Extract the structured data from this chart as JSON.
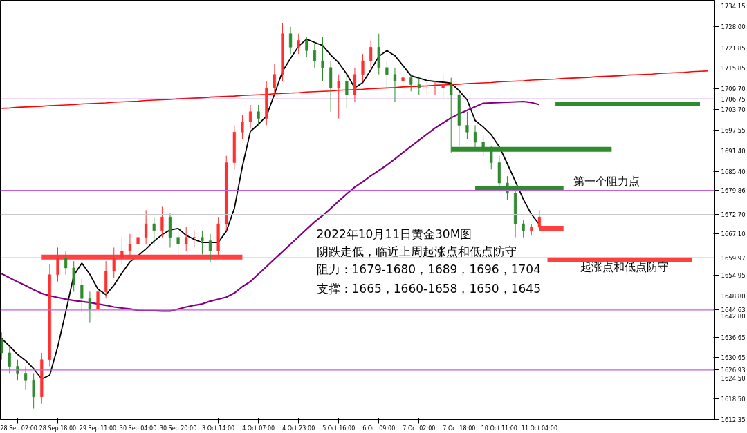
{
  "chart_data": {
    "type": "candlestick",
    "categories": [
      null,
      null,
      "28 Sep 02:00",
      null,
      null,
      null,
      null,
      "28 Sep 18:00",
      null,
      null,
      null,
      null,
      "29 Sep 11:00",
      null,
      null,
      null,
      null,
      "30 Sep 04:00",
      null,
      null,
      null,
      null,
      "30 Sep 20:00",
      null,
      null,
      null,
      null,
      "3 Oct 14:00",
      null,
      null,
      null,
      null,
      "4 Oct 07:00",
      null,
      null,
      null,
      null,
      "4 Oct 23:00",
      null,
      null,
      null,
      null,
      "5 Oct 16:00",
      null,
      null,
      null,
      null,
      "6 Oct 09:00",
      null,
      null,
      null,
      null,
      "7 Oct 02:00",
      null,
      null,
      null,
      null,
      "7 Oct 18:00",
      null,
      null,
      null,
      null,
      "10 Oct 11:00",
      null,
      null,
      null,
      null,
      "11 Oct 04:00",
      null,
      null,
      null,
      null,
      null,
      null,
      null,
      null,
      null,
      null,
      null,
      null,
      null,
      null,
      null,
      null,
      null,
      null,
      null,
      null,
      null
    ],
    "ohlc": [
      [
        1636,
        1638,
        1630,
        1632
      ],
      [
        1632,
        1634,
        1626,
        1628
      ],
      [
        1628,
        1630,
        1624,
        1626
      ],
      [
        1626,
        1628,
        1621,
        1624
      ],
      [
        1624,
        1626,
        1615.6,
        1619
      ],
      [
        1619,
        1632,
        1617,
        1630
      ],
      [
        1630,
        1658,
        1628,
        1655
      ],
      [
        1655,
        1663,
        1653,
        1660
      ],
      [
        1660,
        1662,
        1655,
        1657
      ],
      [
        1657,
        1659,
        1650,
        1652
      ],
      [
        1652,
        1654,
        1644,
        1648
      ],
      [
        1648,
        1650,
        1641,
        1645
      ],
      [
        1645,
        1652,
        1643,
        1650
      ],
      [
        1650,
        1659,
        1648,
        1656
      ],
      [
        1656,
        1663,
        1654,
        1660
      ],
      [
        1660,
        1666,
        1658,
        1662
      ],
      [
        1662,
        1667,
        1660,
        1664
      ],
      [
        1664,
        1669,
        1662,
        1666
      ],
      [
        1666,
        1674,
        1664,
        1670
      ],
      [
        1670,
        1672,
        1664,
        1668
      ],
      [
        1668,
        1675,
        1666,
        1672
      ],
      [
        1672,
        1673,
        1663,
        1666
      ],
      [
        1666,
        1668,
        1661,
        1664
      ],
      [
        1664,
        1669,
        1662,
        1666
      ],
      [
        1666,
        1668,
        1663,
        1666
      ],
      [
        1666,
        1668,
        1661,
        1665
      ],
      [
        1665,
        1667,
        1658.8,
        1662
      ],
      [
        1662,
        1672,
        1660,
        1670
      ],
      [
        1670,
        1690,
        1668,
        1688
      ],
      [
        1688,
        1699,
        1686,
        1697
      ],
      [
        1697,
        1702,
        1695,
        1700
      ],
      [
        1700,
        1705,
        1698,
        1703
      ],
      [
        1703,
        1705,
        1699,
        1701
      ],
      [
        1701,
        1712,
        1699,
        1710
      ],
      [
        1710,
        1717,
        1708,
        1714
      ],
      [
        1714,
        1729,
        1712,
        1726
      ],
      [
        1726,
        1728,
        1720,
        1722
      ],
      [
        1722,
        1726,
        1720,
        1724
      ],
      [
        1724,
        1725,
        1719,
        1721
      ],
      [
        1721,
        1723,
        1716,
        1718
      ],
      [
        1718,
        1725,
        1712,
        1716
      ],
      [
        1716,
        1718,
        1703,
        1710
      ],
      [
        1710,
        1714,
        1701,
        1712
      ],
      [
        1712,
        1714,
        1704,
        1708
      ],
      [
        1708,
        1716,
        1706,
        1714
      ],
      [
        1714,
        1720,
        1712,
        1718
      ],
      [
        1718,
        1724,
        1716,
        1722
      ],
      [
        1722,
        1726,
        1714,
        1716
      ],
      [
        1716,
        1718,
        1710,
        1714
      ],
      [
        1714,
        1716,
        1706,
        1712
      ],
      [
        1712,
        1715,
        1710,
        1713
      ],
      [
        1713,
        1714,
        1709,
        1711
      ],
      [
        1711,
        1713,
        1708,
        1710
      ],
      [
        1710,
        1712,
        1708,
        1710
      ],
      [
        1710,
        1712,
        1708,
        1710
      ],
      [
        1710,
        1714,
        1707,
        1711
      ],
      [
        1711,
        1713,
        1691,
        1708
      ],
      [
        1708,
        1709,
        1693,
        1699
      ],
      [
        1699,
        1703,
        1695,
        1697
      ],
      [
        1697,
        1699,
        1692,
        1694
      ],
      [
        1694,
        1696,
        1690,
        1692
      ],
      [
        1692,
        1693,
        1686,
        1688
      ],
      [
        1688,
        1690,
        1680,
        1682
      ],
      [
        1682,
        1684,
        1677,
        1679
      ],
      [
        1679,
        1680,
        1666,
        1670
      ],
      [
        1670,
        1671,
        1666,
        1668
      ],
      [
        1668,
        1670,
        1666.5,
        1669
      ],
      [
        1669,
        1674,
        1668,
        1672
      ],
      null,
      null,
      null,
      null,
      null,
      null,
      null,
      null,
      null,
      null,
      null,
      null,
      null,
      null,
      null,
      null,
      null,
      null,
      null,
      null,
      null
    ],
    "colors": [
      "#2e8b2e",
      "#2e8b2e",
      "#2e8b2e",
      "#2e8b2e",
      "#2e8b2e",
      "#ff3030",
      "#ff3030",
      "#ff3030",
      "#2e8b2e",
      "#2e8b2e",
      "#2e8b2e",
      "#2e8b2e",
      "#ff3030",
      "#ff3030",
      "#ff3030",
      "#ff3030",
      "#ff3030",
      "#ff3030",
      "#ff3030",
      "#2e8b2e",
      "#ff3030",
      "#2e8b2e",
      "#2e8b2e",
      "#ff3030",
      "#ff3030",
      "#2e8b2e",
      "#2e8b2e",
      "#ff3030",
      "#ff3030",
      "#ff3030",
      "#ff3030",
      "#ff3030",
      "#2e8b2e",
      "#ff3030",
      "#ff3030",
      "#ff3030",
      "#2e8b2e",
      "#ff3030",
      "#2e8b2e",
      "#2e8b2e",
      "#2e8b2e",
      "#2e8b2e",
      "#ff3030",
      "#2e8b2e",
      "#ff3030",
      "#ff3030",
      "#ff3030",
      "#2e8b2e",
      "#2e8b2e",
      "#2e8b2e",
      "#ff3030",
      "#2e8b2e",
      "#2e8b2e",
      "#ff3030",
      "#ff3030",
      "#ff3030",
      "#2e8b2e",
      "#2e8b2e",
      "#2e8b2e",
      "#2e8b2e",
      "#2e8b2e",
      "#2e8b2e",
      "#2e8b2e",
      "#2e8b2e",
      "#2e8b2e",
      "#2e8b2e",
      "#ff3030",
      "#ff3030",
      null,
      null,
      null,
      null,
      null,
      null,
      null,
      null,
      null,
      null,
      null,
      null,
      null,
      null,
      null,
      null,
      null,
      null,
      null,
      null,
      null
    ],
    "series": [
      {
        "type": "line",
        "color": "#000000",
        "values": [
          1636.2,
          1634,
          1631.5,
          1629.7,
          1627.3,
          1624.3,
          1625.4,
          1633.8,
          1644.1,
          1654.8,
          1658.4,
          1655.1,
          1650.8,
          1649.1,
          1651.9,
          1655.5,
          1658.8,
          1660.6,
          1662.6,
          1664.9,
          1666.8,
          1668.2,
          1668.6,
          1666.6,
          1665.4,
          1664.5,
          1664.5,
          1664.5,
          1667.8,
          1674.5,
          1686.9,
          1697.2,
          1699.3,
          1701.7,
          1708.2,
          1714.9,
          1718.7,
          1722.3,
          1724.4,
          1723.4,
          1722.5,
          1719.7,
          1717.4,
          1714.1,
          1710,
          1711.6,
          1715.3,
          1719.3,
          1721,
          1719.5,
          1716.6,
          1713.6,
          1712.9,
          1712.2,
          1711.9,
          1711.7,
          1711.4,
          1709.2,
          1706.5,
          1700.4,
          1698.5,
          1696.2,
          1692.7,
          1687.7,
          1682.5,
          1677.2,
          1672.8,
          1669.8,
          null,
          null,
          null,
          null,
          null,
          null,
          null,
          null,
          null,
          null,
          null,
          null,
          null,
          null,
          null,
          null,
          null,
          null,
          null,
          null,
          null
        ]
      },
      {
        "type": "line",
        "color": "#800080",
        "values": [
          1655.3,
          1654.1,
          1652.9,
          1651.8,
          1650.6,
          1649.5,
          1648.8,
          1648.3,
          1647.8,
          1647.4,
          1647.1,
          1646.8,
          1646.4,
          1646,
          1645.5,
          1645.2,
          1644.9,
          1644.5,
          1644.4,
          1644.4,
          1644.3,
          1644.3,
          1644.9,
          1645.5,
          1646,
          1646.4,
          1647.2,
          1647.8,
          1648.4,
          1649.6,
          1651.5,
          1653,
          1655.2,
          1657.4,
          1659.6,
          1661.8,
          1664,
          1666.2,
          1668.4,
          1670.6,
          1672.4,
          1674.5,
          1676.7,
          1678.8,
          1680.8,
          1682.4,
          1684.1,
          1685.7,
          1687.3,
          1689.1,
          1691,
          1692.8,
          1694.6,
          1696.4,
          1698.2,
          1699.7,
          1701.2,
          1702.4,
          1703.4,
          1704.5,
          1705.5,
          1705.6,
          1705.7,
          1705.8,
          1705.9,
          1706,
          1705.7,
          1705.1,
          null,
          null,
          null,
          null,
          null,
          null,
          null,
          null,
          null,
          null,
          null,
          null,
          null,
          null,
          null,
          null,
          null,
          null,
          null,
          null,
          null
        ]
      },
      {
        "type": "line",
        "color": "#ff0000",
        "values": [
          1704,
          1704.1,
          1704.3,
          1704.4,
          1704.5,
          1704.6,
          1704.8,
          1704.9,
          1705,
          1705.1,
          1705.3,
          1705.4,
          1705.5,
          1705.6,
          1705.8,
          1705.9,
          1706,
          1706.1,
          1706.3,
          1706.4,
          1706.5,
          1706.6,
          1706.8,
          1706.9,
          1707,
          1707.1,
          1707.3,
          1707.4,
          1707.5,
          1707.6,
          1707.8,
          1707.9,
          1708,
          1708.1,
          1708.3,
          1708.4,
          1708.5,
          1708.6,
          1708.8,
          1708.9,
          1709,
          1709.1,
          1709.3,
          1709.4,
          1709.5,
          1709.6,
          1709.8,
          1709.9,
          1710,
          1710.1,
          1710.3,
          1710.4,
          1710.5,
          1710.6,
          1710.8,
          1710.9,
          1711,
          1711.1,
          1711.3,
          1711.4,
          1711.5,
          1711.6,
          1711.8,
          1711.9,
          1712,
          1712.1,
          1712.3,
          1712.4,
          1712.5,
          1712.6,
          1712.8,
          1712.9,
          1713,
          1713.1,
          1713.3,
          1713.4,
          1713.5,
          1713.6,
          1713.8,
          1713.9,
          1714,
          1714.1,
          1714.3,
          1714.4,
          1714.5,
          1714.6,
          1714.8,
          1714.9,
          1715
        ]
      },
      {
        "type": "line",
        "color": "#2e8b2e",
        "values": [
          null,
          null,
          null,
          null,
          null,
          null,
          null,
          null,
          null,
          null,
          null,
          null,
          null,
          null,
          null,
          null,
          null,
          null,
          null,
          null,
          null,
          null,
          null,
          null,
          null,
          null,
          null,
          null,
          null,
          null,
          null,
          null,
          null,
          null,
          null,
          null,
          null,
          null,
          null,
          null,
          null,
          null,
          null,
          null,
          null,
          null,
          null,
          null,
          null,
          null,
          null,
          null,
          null,
          null,
          null,
          null,
          null,
          null,
          null,
          null,
          null,
          null,
          null,
          null,
          null,
          null,
          null,
          null,
          null,
          1705.3,
          1705.3,
          1705.3,
          1705.3,
          1705.3,
          1705.3,
          1705.3,
          1705.3,
          1705.3,
          1705.3,
          1705.3,
          1705.3,
          1705.3,
          1705.3,
          1705.3,
          1705.3,
          1705.3,
          1705.3,
          1705.3,
          null
        ]
      },
      {
        "type": "line",
        "color": "#2e8b2e",
        "values": [
          null,
          null,
          null,
          null,
          null,
          null,
          null,
          null,
          null,
          null,
          null,
          null,
          null,
          null,
          null,
          null,
          null,
          null,
          null,
          null,
          null,
          null,
          null,
          null,
          null,
          null,
          null,
          null,
          null,
          null,
          null,
          null,
          null,
          null,
          null,
          null,
          null,
          null,
          null,
          null,
          null,
          null,
          null,
          null,
          null,
          null,
          null,
          null,
          null,
          null,
          null,
          null,
          null,
          null,
          null,
          null,
          1691.9,
          1691.9,
          1691.9,
          1691.9,
          1691.9,
          1691.9,
          1691.9,
          1691.9,
          1691.9,
          1691.9,
          1691.9,
          1691.9,
          1691.9,
          1691.9,
          1691.9,
          1691.9,
          1691.9,
          1691.9,
          1691.9,
          1691.9,
          1691.9,
          null,
          null,
          null,
          null,
          null,
          null,
          null,
          null,
          null,
          null,
          null,
          null
        ]
      },
      {
        "type": "line",
        "color": "#2e8b2e",
        "values": [
          null,
          null,
          null,
          null,
          null,
          null,
          null,
          null,
          null,
          null,
          null,
          null,
          null,
          null,
          null,
          null,
          null,
          null,
          null,
          null,
          null,
          null,
          null,
          null,
          null,
          null,
          null,
          null,
          null,
          null,
          null,
          null,
          null,
          null,
          null,
          null,
          null,
          null,
          null,
          null,
          null,
          null,
          null,
          null,
          null,
          null,
          null,
          null,
          null,
          null,
          null,
          null,
          null,
          null,
          null,
          null,
          null,
          null,
          null,
          1680.4,
          1680.4,
          1680.4,
          1680.4,
          1680.4,
          1680.4,
          1680.4,
          1680.4,
          1680.4,
          1680.4,
          1680.4,
          1680.4,
          null,
          null,
          null,
          null,
          null,
          null,
          null,
          null,
          null,
          null,
          null,
          null,
          null,
          null,
          null,
          null,
          null,
          null
        ]
      },
      {
        "type": "line",
        "color": "#ff4040",
        "values": [
          null,
          null,
          null,
          null,
          null,
          1660.2,
          1660.2,
          1660.2,
          1660.2,
          1660.2,
          1660.2,
          1660.2,
          1660.2,
          1660.2,
          1660.2,
          1660.2,
          1660.2,
          1660.2,
          1660.2,
          1660.2,
          1660.2,
          1660.2,
          1660.2,
          1660.2,
          1660.2,
          1660.2,
          1660.2,
          1660.2,
          1660.2,
          1660.2,
          1660.2,
          null,
          null,
          null,
          null,
          null,
          null,
          null,
          null,
          null,
          null,
          null,
          null,
          null,
          null,
          null,
          null,
          null,
          null,
          null,
          null,
          null,
          null,
          null,
          null,
          null,
          null,
          null,
          null,
          null,
          null,
          null,
          null,
          null,
          null,
          null,
          null,
          null,
          null,
          null,
          null,
          null,
          null,
          null,
          null,
          null,
          null,
          null,
          null,
          null,
          null,
          null,
          null,
          null,
          null,
          null,
          null,
          null,
          null
        ]
      },
      {
        "type": "line",
        "color": "#ff4040",
        "values": [
          null,
          null,
          null,
          null,
          null,
          null,
          null,
          null,
          null,
          null,
          null,
          null,
          null,
          null,
          null,
          null,
          null,
          null,
          null,
          null,
          null,
          null,
          null,
          null,
          null,
          null,
          null,
          null,
          null,
          null,
          null,
          null,
          null,
          null,
          null,
          null,
          null,
          null,
          null,
          null,
          null,
          null,
          null,
          null,
          null,
          null,
          null,
          null,
          null,
          null,
          null,
          null,
          null,
          null,
          null,
          null,
          null,
          null,
          null,
          null,
          null,
          null,
          null,
          null,
          null,
          null,
          null,
          1668.7,
          1668.7,
          1668.7,
          1668.7,
          null,
          null,
          null,
          null,
          null,
          null,
          null,
          null,
          null,
          null,
          null,
          null,
          null,
          null,
          null,
          null,
          null,
          null
        ]
      },
      {
        "type": "line",
        "color": "#ff4040",
        "values": [
          null,
          null,
          null,
          null,
          null,
          null,
          null,
          null,
          null,
          null,
          null,
          null,
          null,
          null,
          null,
          null,
          null,
          null,
          null,
          null,
          null,
          null,
          null,
          null,
          null,
          null,
          null,
          null,
          null,
          null,
          null,
          null,
          null,
          null,
          null,
          null,
          null,
          null,
          null,
          null,
          null,
          null,
          null,
          null,
          null,
          null,
          null,
          null,
          null,
          null,
          null,
          null,
          null,
          null,
          null,
          null,
          null,
          null,
          null,
          null,
          null,
          null,
          null,
          null,
          null,
          null,
          null,
          null,
          1659.4,
          1659.4,
          1659.4,
          1659.4,
          1659.4,
          1659.4,
          1659.4,
          1659.4,
          1659.4,
          1659.4,
          1659.4,
          1659.4,
          1659.4,
          1659.4,
          1659.4,
          1659.4,
          1659.4,
          1659.4,
          1659.4,
          null,
          null
        ]
      }
    ],
    "ylim": [
      1612.35,
      1735.8
    ],
    "yticks": [
      {
        "value": 1612.35,
        "label": "1612.35"
      },
      {
        "value": 1618.5,
        "label": "1618.50"
      },
      {
        "value": 1624.5,
        "label": "1624.50"
      },
      {
        "value": 1630.65,
        "label": "1630.65"
      },
      {
        "value": 1636.65,
        "label": "1636.65"
      },
      {
        "value": 1642.8,
        "label": "1642.80"
      },
      {
        "value": 1648.8,
        "label": "1648.80"
      },
      {
        "value": 1654.95,
        "label": "1654.95"
      },
      {
        "value": 1667.1,
        "label": "1667.10"
      },
      {
        "value": 1685.4,
        "label": "1685.40"
      },
      {
        "value": 1691.4,
        "label": "1691.40"
      },
      {
        "value": 1697.55,
        "label": "1697.55"
      },
      {
        "value": 1703.7,
        "label": "1703.70"
      },
      {
        "value": 1709.7,
        "label": "1709.70"
      },
      {
        "value": 1715.85,
        "label": "1715.85"
      },
      {
        "value": 1721.85,
        "label": "1721.85"
      },
      {
        "value": 1728,
        "label": "1728.00"
      },
      {
        "value": 1734.15,
        "label": "1734.15"
      }
    ],
    "ref_lines": [
      {
        "axis": "y",
        "value": 1706.75,
        "label": "1706.75",
        "color": "#c060e0"
      },
      {
        "axis": "y",
        "value": 1679.86,
        "label": "1679.86",
        "color": "#c060e0"
      },
      {
        "axis": "y",
        "value": 1672.7,
        "label": "1672.70",
        "color": "#c8c8c8"
      },
      {
        "axis": "y",
        "value": 1659.97,
        "label": "1659.97",
        "color": "#c060e0"
      },
      {
        "axis": "y",
        "value": 1644.63,
        "label": "1644.63",
        "color": "#c060e0"
      },
      {
        "axis": "y",
        "value": 1626.93,
        "label": "1626.93",
        "color": "#c060e0"
      }
    ],
    "annotations": [
      {
        "text": "第一个阻力点",
        "y": 1680.4
      },
      {
        "text": "起涨点和低点防守",
        "y": 1659.4
      },
      "2022年10月11日黄金30M图",
      "阴跌走低，临近上周起涨点和低点防守",
      "阻力：1679-1680，1689，1696，1704",
      "支撑：1665，1660-1658，1650，1645"
    ]
  }
}
